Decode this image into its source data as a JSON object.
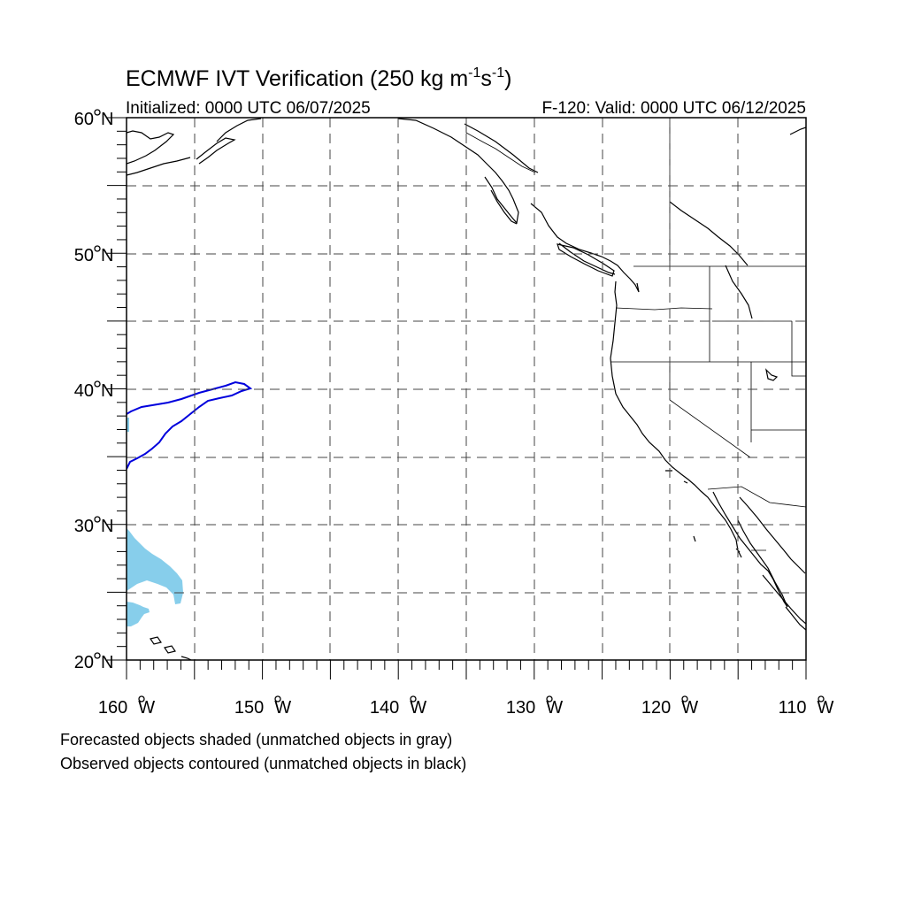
{
  "title": {
    "main": "ECMWF IVT Verification (250 kg m",
    "sup1": "-1",
    "s": "s",
    "sup2": "-1",
    "close": ")"
  },
  "initialized": "Initialized: 0000 UTC 06/07/2025",
  "valid": "F-120: Valid: 0000 UTC 06/12/2025",
  "lat_labels": [
    {
      "deg": "60",
      "hemi": "N"
    },
    {
      "deg": "50",
      "hemi": "N"
    },
    {
      "deg": "40",
      "hemi": "N"
    },
    {
      "deg": "30",
      "hemi": "N"
    },
    {
      "deg": "20",
      "hemi": "N"
    }
  ],
  "lon_labels": [
    {
      "deg": "160",
      "hemi": "W"
    },
    {
      "deg": "150",
      "hemi": "W"
    },
    {
      "deg": "140",
      "hemi": "W"
    },
    {
      "deg": "130",
      "hemi": "W"
    },
    {
      "deg": "120",
      "hemi": "W"
    },
    {
      "deg": "110",
      "hemi": "W"
    }
  ],
  "legend": {
    "forecast": "Forecasted objects shaded (unmatched objects in gray)",
    "observed": "Observed objects contoured (unmatched objects in black)"
  },
  "colors": {
    "forecast_fill": "#87ceeb",
    "observed_contour": "#0000dd",
    "coastline": "#000000",
    "grid": "#444444"
  },
  "map": {
    "projection": "cylindrical equidistant",
    "lon_range": [
      -160,
      -110
    ],
    "lat_range": [
      20,
      60
    ],
    "grid_lines": "dashed every 5 degrees"
  }
}
